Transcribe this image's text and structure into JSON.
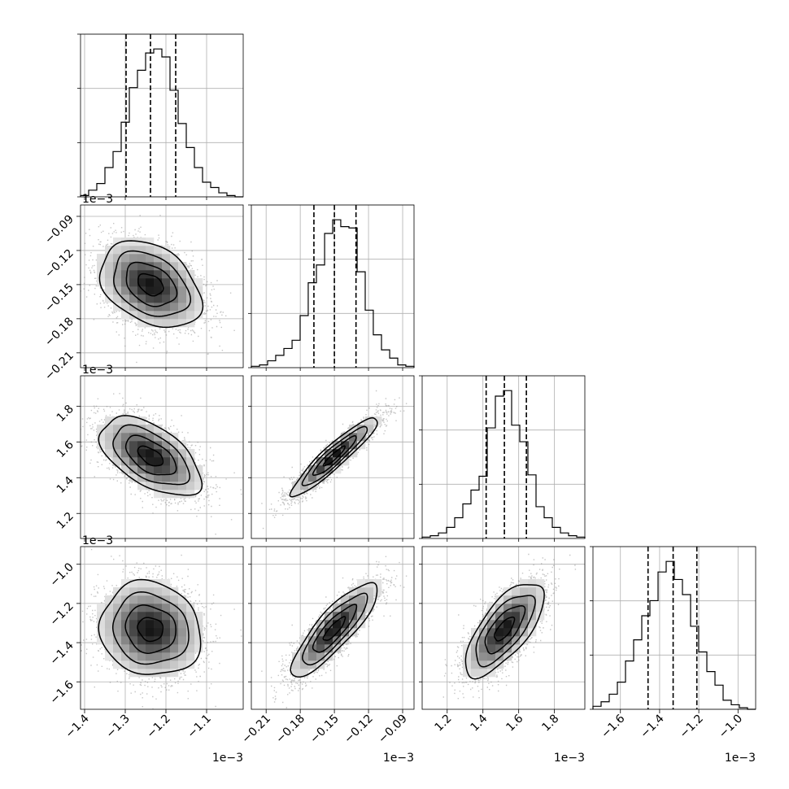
{
  "chart_data": {
    "type": "corner",
    "offset_text": "1e−3",
    "parameters": [
      {
        "index": 0,
        "range": [
          -1.41,
          -1.01
        ],
        "ticks": [
          -1.4,
          -1.3,
          -1.2,
          -1.1
        ],
        "tick_labels": [
          "−1.4",
          "−1.3",
          "−1.2",
          "−1.1"
        ],
        "quantiles": [
          -1.298,
          -1.238,
          -1.176
        ],
        "histogram": {
          "bin_edges": [
            -1.41,
            -1.39,
            -1.37,
            -1.35,
            -1.33,
            -1.31,
            -1.29,
            -1.27,
            -1.25,
            -1.23,
            -1.21,
            -1.19,
            -1.17,
            -1.15,
            -1.13,
            -1.11,
            -1.09,
            -1.07,
            -1.05,
            -1.03,
            -1.01
          ],
          "counts": [
            1,
            5,
            10,
            22,
            34,
            56,
            82,
            95,
            108,
            111,
            105,
            80,
            55,
            37,
            22,
            11,
            7,
            3,
            1,
            0
          ]
        }
      },
      {
        "index": 1,
        "range": [
          -0.223,
          -0.08
        ],
        "ticks": [
          -0.21,
          -0.18,
          -0.15,
          -0.12,
          -0.09
        ],
        "tick_labels": [
          "−0.21",
          "−0.18",
          "−0.15",
          "−0.12",
          "−0.09"
        ],
        "quantiles": [
          -0.168,
          -0.15,
          -0.131
        ],
        "histogram": {
          "bin_edges": [
            -0.223,
            -0.2158,
            -0.2087,
            -0.2016,
            -0.1944,
            -0.1872,
            -0.1801,
            -0.173,
            -0.1658,
            -0.1586,
            -0.1515,
            -0.1444,
            -0.1372,
            -0.13,
            -0.1229,
            -0.1158,
            -0.1086,
            -0.1014,
            -0.0943,
            -0.0872,
            -0.08
          ],
          "counts": [
            1,
            2,
            5,
            9,
            14,
            20,
            38,
            62,
            75,
            98,
            108,
            103,
            102,
            70,
            42,
            24,
            13,
            7,
            2,
            1
          ]
        }
      },
      {
        "index": 2,
        "range": [
          1.06,
          1.97
        ],
        "ticks": [
          1.2,
          1.4,
          1.6,
          1.8
        ],
        "tick_labels": [
          "1.2",
          "1.4",
          "1.6",
          "1.8"
        ],
        "quantiles": [
          1.418,
          1.52,
          1.643
        ],
        "histogram": {
          "bin_edges": [
            1.06,
            1.1055,
            1.151,
            1.1965,
            1.242,
            1.2875,
            1.333,
            1.3785,
            1.424,
            1.4695,
            1.515,
            1.5605,
            1.606,
            1.6515,
            1.697,
            1.7425,
            1.788,
            1.8335,
            1.879,
            1.9245,
            1.97
          ],
          "counts": [
            1,
            2,
            4,
            8,
            15,
            25,
            35,
            45,
            80,
            103,
            107,
            82,
            70,
            46,
            23,
            15,
            8,
            4,
            2,
            1
          ]
        }
      },
      {
        "index": 3,
        "range": [
          -1.74,
          -0.91
        ],
        "ticks": [
          -1.6,
          -1.4,
          -1.2,
          -1.0
        ],
        "tick_labels": [
          "−1.6",
          "−1.4",
          "−1.2",
          "−1.0"
        ],
        "quantiles": [
          -1.459,
          -1.331,
          -1.21
        ],
        "histogram": {
          "bin_edges": [
            -1.74,
            -1.6985,
            -1.657,
            -1.6155,
            -1.574,
            -1.5325,
            -1.491,
            -1.4495,
            -1.408,
            -1.3665,
            -1.325,
            -1.2835,
            -1.242,
            -1.2005,
            -1.159,
            -1.1175,
            -1.076,
            -1.0345,
            -0.993,
            -0.9515,
            -0.91
          ],
          "counts": [
            2,
            5,
            10,
            18,
            32,
            46,
            62,
            72,
            91,
            98,
            86,
            76,
            55,
            38,
            25,
            16,
            6,
            3,
            1,
            0
          ]
        }
      }
    ],
    "pairs": [
      {
        "x": 0,
        "y": 1,
        "mean": [
          -1.238,
          -0.15
        ],
        "sd": [
          0.062,
          0.019
        ],
        "rho": -0.35
      },
      {
        "x": 0,
        "y": 2,
        "mean": [
          -1.238,
          1.52
        ],
        "sd": [
          0.062,
          0.11
        ],
        "rho": -0.55
      },
      {
        "x": 1,
        "y": 2,
        "mean": [
          -0.15,
          1.52
        ],
        "sd": [
          0.019,
          0.11
        ],
        "rho": 0.93
      },
      {
        "x": 0,
        "y": 3,
        "mean": [
          -1.238,
          -1.331
        ],
        "sd": [
          0.062,
          0.12
        ],
        "rho": -0.1
      },
      {
        "x": 1,
        "y": 3,
        "mean": [
          -0.15,
          -1.331
        ],
        "sd": [
          0.019,
          0.12
        ],
        "rho": 0.85
      },
      {
        "x": 2,
        "y": 3,
        "mean": [
          1.52,
          -1.331
        ],
        "sd": [
          0.11,
          0.12
        ],
        "rho": 0.7
      }
    ],
    "grid": true,
    "quantile_style": "dashed",
    "contour_levels_sigma": [
      0.5,
      1.0,
      1.5,
      2.0
    ],
    "colors": {
      "hist": "#000000",
      "scatter": "#7f7f7f",
      "density": "#000000",
      "grid": "#b0b0b0"
    }
  }
}
